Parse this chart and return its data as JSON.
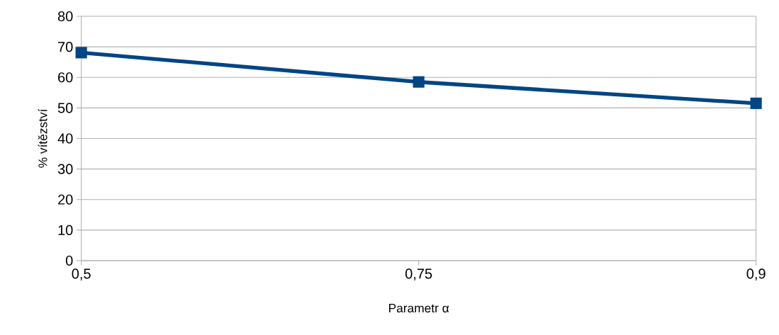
{
  "chart_data": {
    "type": "line",
    "xlabel": "Parametr α",
    "ylabel": "% vítězství",
    "categories": [
      "0,5",
      "0,75",
      "0,9"
    ],
    "series": [
      {
        "color": "#004586",
        "values": [
          68.1,
          58.5,
          51.5
        ]
      }
    ],
    "ylim": [
      0,
      80
    ],
    "yticks": [
      0,
      10,
      20,
      30,
      40,
      50,
      60,
      70,
      80
    ],
    "grid": "y",
    "marker": "square",
    "line_style": "solid"
  }
}
